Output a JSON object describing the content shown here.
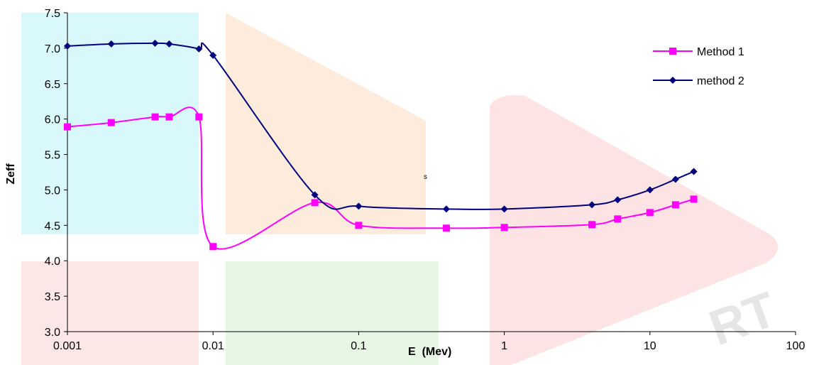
{
  "chart_data": {
    "type": "line",
    "title": "",
    "xlabel": "E  (Mev)",
    "ylabel": "Zeff",
    "x_scale": "log",
    "xlim": [
      0.001,
      100
    ],
    "ylim": [
      3.0,
      7.5
    ],
    "x_ticks": [
      "0.001",
      "0.01",
      "0.1",
      "1",
      "10",
      "100"
    ],
    "y_ticks": [
      "3.0",
      "3.5",
      "4.0",
      "4.5",
      "5.0",
      "5.5",
      "6.0",
      "6.5",
      "7.0",
      "7.5"
    ],
    "grid": false,
    "legend_position": "top-right",
    "annotation": "s",
    "series": [
      {
        "name": "Method 1",
        "color": "#ff00ff",
        "marker": "square",
        "x": [
          0.001,
          0.002,
          0.004,
          0.005,
          0.008,
          0.01,
          0.05,
          0.1,
          0.4,
          1,
          4,
          6,
          10,
          15,
          20
        ],
        "y": [
          5.89,
          5.95,
          6.03,
          6.03,
          6.03,
          4.2,
          4.82,
          4.5,
          4.46,
          4.47,
          4.51,
          4.59,
          4.68,
          4.79,
          4.87
        ]
      },
      {
        "name": "method 2",
        "color": "#000080",
        "marker": "diamond",
        "x": [
          0.001,
          0.002,
          0.004,
          0.005,
          0.008,
          0.01,
          0.05,
          0.1,
          0.4,
          1,
          4,
          6,
          10,
          15,
          20
        ],
        "y": [
          7.03,
          7.06,
          7.07,
          7.06,
          6.99,
          6.9,
          4.93,
          4.77,
          4.73,
          4.73,
          4.79,
          4.86,
          5.0,
          5.15,
          5.26
        ]
      }
    ]
  }
}
